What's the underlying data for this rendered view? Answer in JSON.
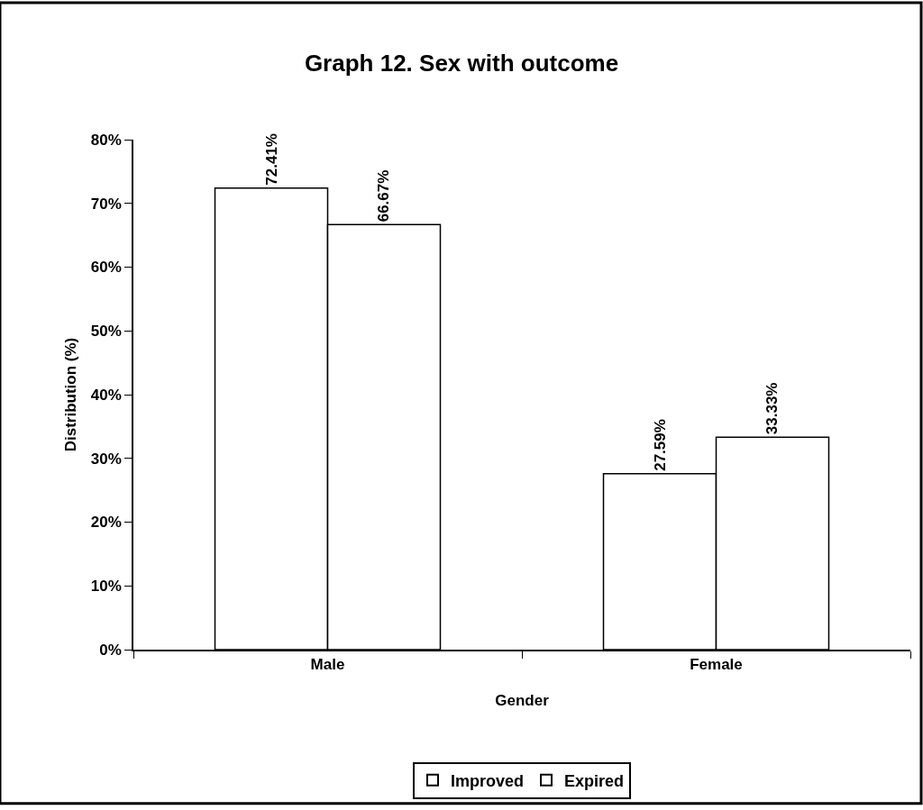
{
  "chart_data": {
    "type": "bar",
    "title": "Graph 12. Sex with outcome",
    "xlabel": "Gender",
    "ylabel": "Distribution (%)",
    "categories": [
      "Male",
      "Female"
    ],
    "series": [
      {
        "name": "Improved",
        "color": "#ffffff",
        "values": [
          72.41,
          27.59
        ],
        "value_labels": [
          "72.41%",
          "27.59%"
        ]
      },
      {
        "name": "Expired",
        "color": "#ffffff",
        "values": [
          66.67,
          33.33
        ],
        "value_labels": [
          "66.67%",
          "33.33%"
        ]
      }
    ],
    "ylim": [
      0,
      80
    ],
    "yticks": [
      {
        "value": 0,
        "label": "0%"
      },
      {
        "value": 10,
        "label": "10%"
      },
      {
        "value": 20,
        "label": "20%"
      },
      {
        "value": 30,
        "label": "30%"
      },
      {
        "value": 40,
        "label": "40%"
      },
      {
        "value": 50,
        "label": "50%"
      },
      {
        "value": 60,
        "label": "60%"
      },
      {
        "value": 70,
        "label": "70%"
      },
      {
        "value": 80,
        "label": "80%"
      }
    ],
    "legend": "bottom"
  }
}
